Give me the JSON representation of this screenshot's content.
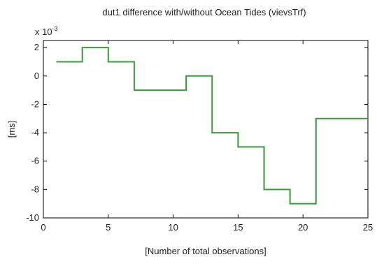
{
  "chart_data": {
    "type": "line",
    "style": "step",
    "title": "dut1 difference with/without Ocean Tides (vievsTrf)",
    "xlabel": "[Number of total observations]",
    "ylabel": "[ms]",
    "y_multiplier_base": "x 10",
    "y_multiplier_exponent": "-3",
    "xlim": [
      0,
      25
    ],
    "ylim": [
      -10,
      2.5
    ],
    "x_ticks": [
      0,
      5,
      10,
      15,
      20,
      25
    ],
    "x_tick_labels": [
      "0",
      "5",
      "10",
      "15",
      "20",
      "25"
    ],
    "y_ticks": [
      2,
      0,
      -2,
      -4,
      -6,
      -8,
      -10
    ],
    "y_tick_labels": [
      "2",
      "0",
      "-2",
      "-4",
      "-6",
      "-8",
      "-10"
    ],
    "grid": false,
    "series": [
      {
        "color": "#3a9a3a",
        "x": [
          1,
          3,
          5,
          7,
          11,
          13,
          15,
          17,
          19,
          21,
          25
        ],
        "y": [
          1,
          2,
          1,
          -1,
          0,
          -4,
          -5,
          -8,
          -9,
          -3,
          -3
        ]
      }
    ]
  }
}
